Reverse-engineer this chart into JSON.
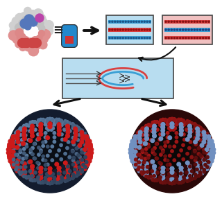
{
  "bg_color": "#ffffff",
  "blue_color": "#3a9fd4",
  "red_color": "#d94040",
  "dark_color": "#111111",
  "light_blue_bg": "#b8ddf0",
  "light_red_bg": "#f0c0c0",
  "capsule_blue": "#2288cc",
  "capsule_red": "#cc3333",
  "box_border": "#444444",
  "arrow_color": "#111111",
  "vesicle_blue_dot": "#7aaac8",
  "vesicle_blue_dot2": "#b8cfe8",
  "vesicle_red_dot": "#cc2222",
  "vesicle_red_dot2": "#e06060",
  "vesicle_blue_bg": "#111827",
  "vesicle_red_bg": "#3a0808",
  "vesicle_hollow": "#0a0f1a",
  "vesicle_hollow_red": "#0f0808",
  "rim_red": "#cc1111",
  "rim_blue": "#6688bb"
}
